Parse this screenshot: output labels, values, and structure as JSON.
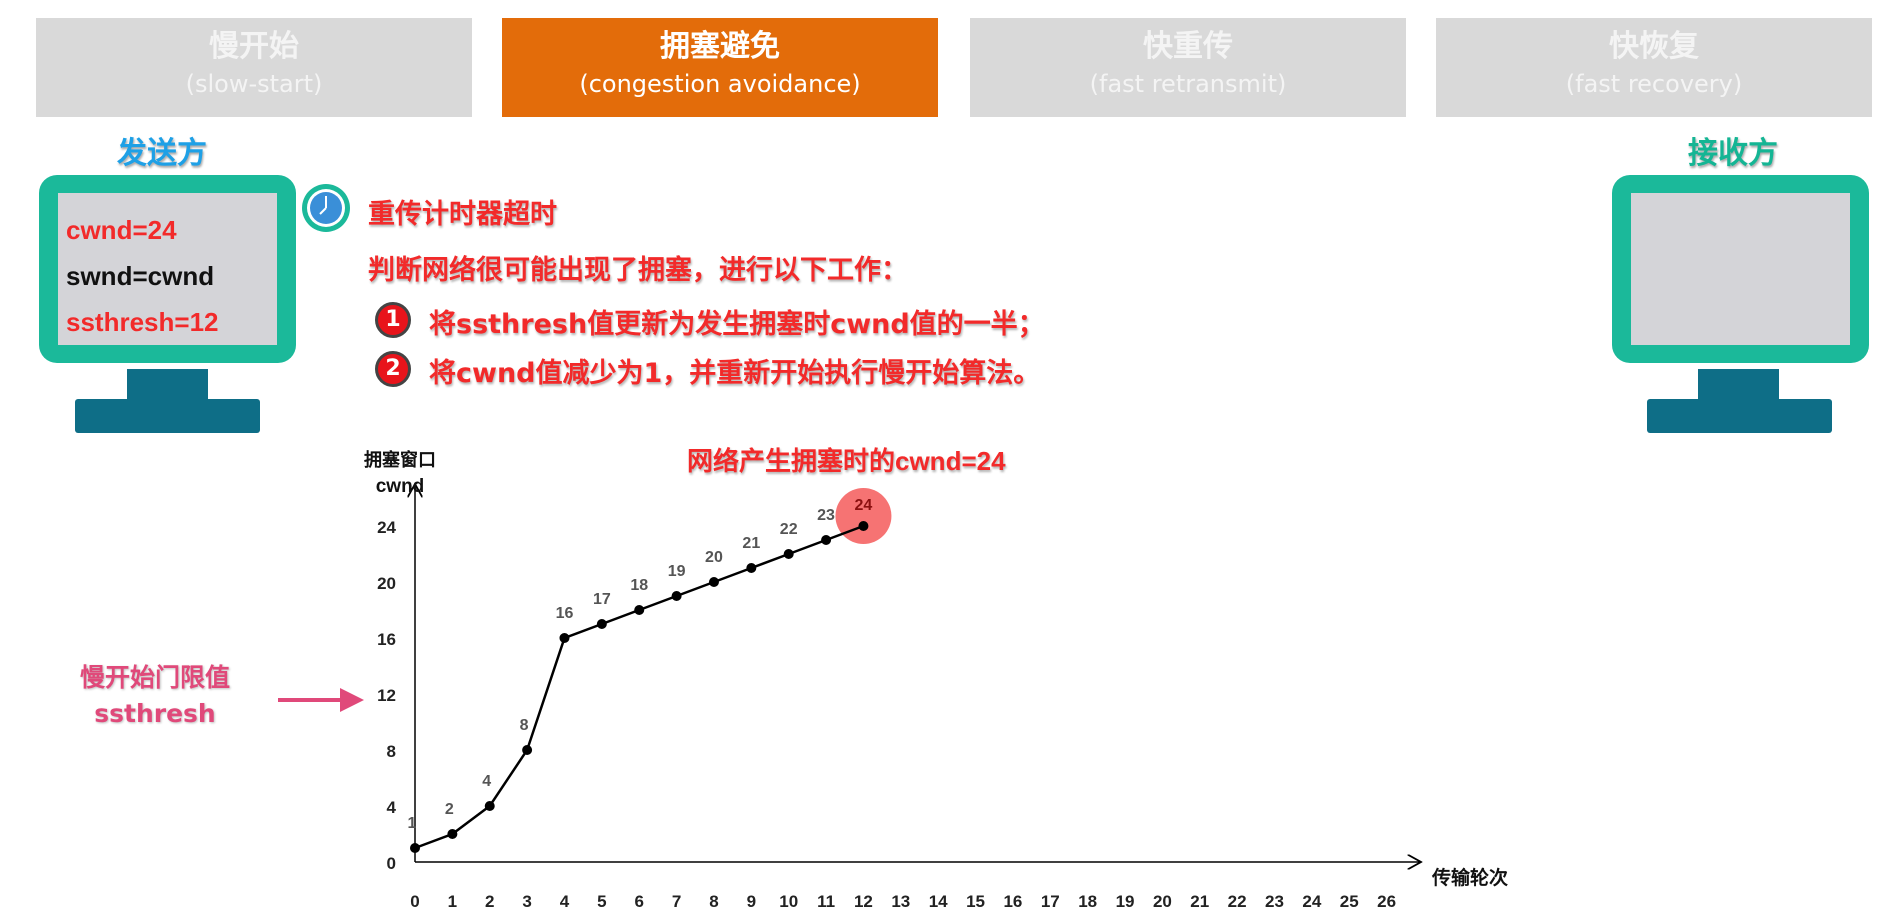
{
  "tabs": [
    {
      "title": "慢开始",
      "subtitle": "(slow-start)",
      "active": false
    },
    {
      "title": "拥塞避免",
      "subtitle": "(congestion avoidance)",
      "active": true
    },
    {
      "title": "快重传",
      "subtitle": "(fast retransmit)",
      "active": false
    },
    {
      "title": "快恢复",
      "subtitle": "(fast recovery)",
      "active": false
    }
  ],
  "sender": {
    "label": "发送方",
    "cwnd": "cwnd=24",
    "swnd": "swnd=cwnd",
    "ssthresh": "ssthresh=12"
  },
  "receiver": {
    "label": "接收方"
  },
  "event": {
    "icon": "clock-icon",
    "title": "重传计时器超时",
    "desc": "判断网络很可能出现了拥塞，进行以下工作：",
    "steps": [
      {
        "num": "1",
        "text": "将ssthresh值更新为发生拥塞时cwnd值的一半；"
      },
      {
        "num": "2",
        "text": "将cwnd值减少为1，并重新开始执行慢开始算法。"
      }
    ]
  },
  "ssthresh_label": {
    "line1": "慢开始门限值",
    "line2": "ssthresh"
  },
  "colors": {
    "accent": "#e36c0a",
    "tab_inactive": "#d9d9d9",
    "sender": "#1ea0e6",
    "receiver": "#14b594",
    "alert": "#f22a2a",
    "ssthresh": "#e0497a"
  },
  "chart_data": {
    "type": "line",
    "ylabel_line1": "拥塞窗口",
    "ylabel_line2": "cwnd",
    "xlabel": "传输轮次",
    "annotation": "网络产生拥塞时的cwnd=24",
    "x_ticks": [
      0,
      1,
      2,
      3,
      4,
      5,
      6,
      7,
      8,
      9,
      10,
      11,
      12,
      13,
      14,
      15,
      16,
      17,
      18,
      19,
      20,
      21,
      22,
      23,
      24,
      25,
      26
    ],
    "y_ticks": [
      0,
      4,
      8,
      12,
      16,
      20,
      24
    ],
    "xlim": [
      0,
      26
    ],
    "ylim": [
      0,
      24
    ],
    "x": [
      0,
      1,
      2,
      3,
      4,
      5,
      6,
      7,
      8,
      9,
      10,
      11,
      12
    ],
    "y": [
      1,
      2,
      4,
      8,
      16,
      17,
      18,
      19,
      20,
      21,
      22,
      23,
      24
    ],
    "highlight_x": 12,
    "grid": false
  }
}
